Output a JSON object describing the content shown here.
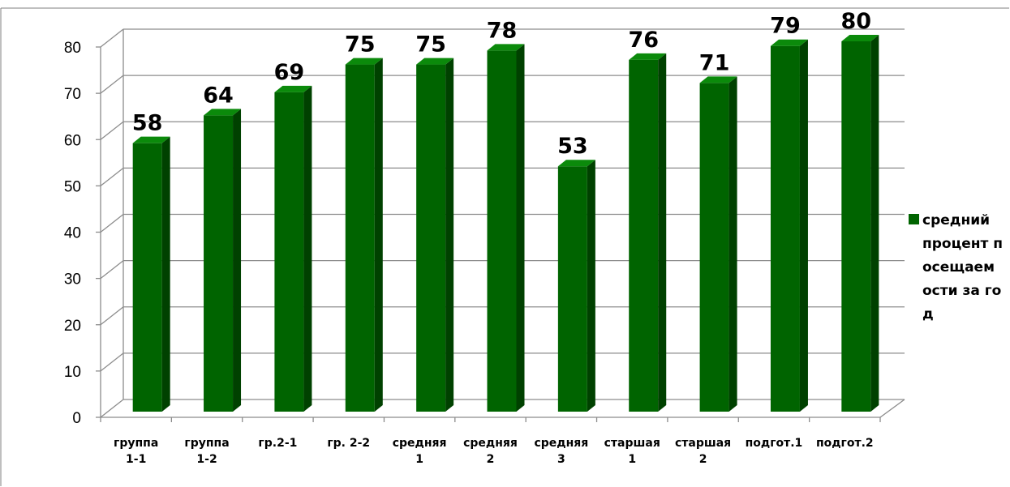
{
  "chart_data": {
    "type": "bar",
    "categories": [
      [
        "группа",
        "1-1"
      ],
      [
        "группа",
        "1-2"
      ],
      [
        "гр.2-1"
      ],
      [
        "гр. 2-2"
      ],
      [
        "средняя",
        "1"
      ],
      [
        "средняя",
        "2"
      ],
      [
        "средняя",
        "3"
      ],
      [
        "старшая",
        "1"
      ],
      [
        "старшая",
        "2"
      ],
      [
        "подгот.1"
      ],
      [
        "подгот.2"
      ]
    ],
    "series": [
      {
        "name": "средний процент посещаемости за год",
        "values": [
          58,
          64,
          69,
          75,
          75,
          78,
          53,
          76,
          71,
          79,
          80
        ],
        "color": "#006400"
      }
    ],
    "ylim": [
      0,
      80
    ],
    "yticks": [
      "0",
      "10",
      "20",
      "30",
      "40",
      "50",
      "60",
      "70",
      "80"
    ],
    "grid": true,
    "style": "3d-bar",
    "legend_position": "right"
  },
  "legend": {
    "label": "средний процент посещаемости за год"
  },
  "colors": {
    "bar_front": "#006400",
    "bar_side": "#004100",
    "bar_top": "#0b8a0b",
    "grid": "#8c8c8c"
  }
}
